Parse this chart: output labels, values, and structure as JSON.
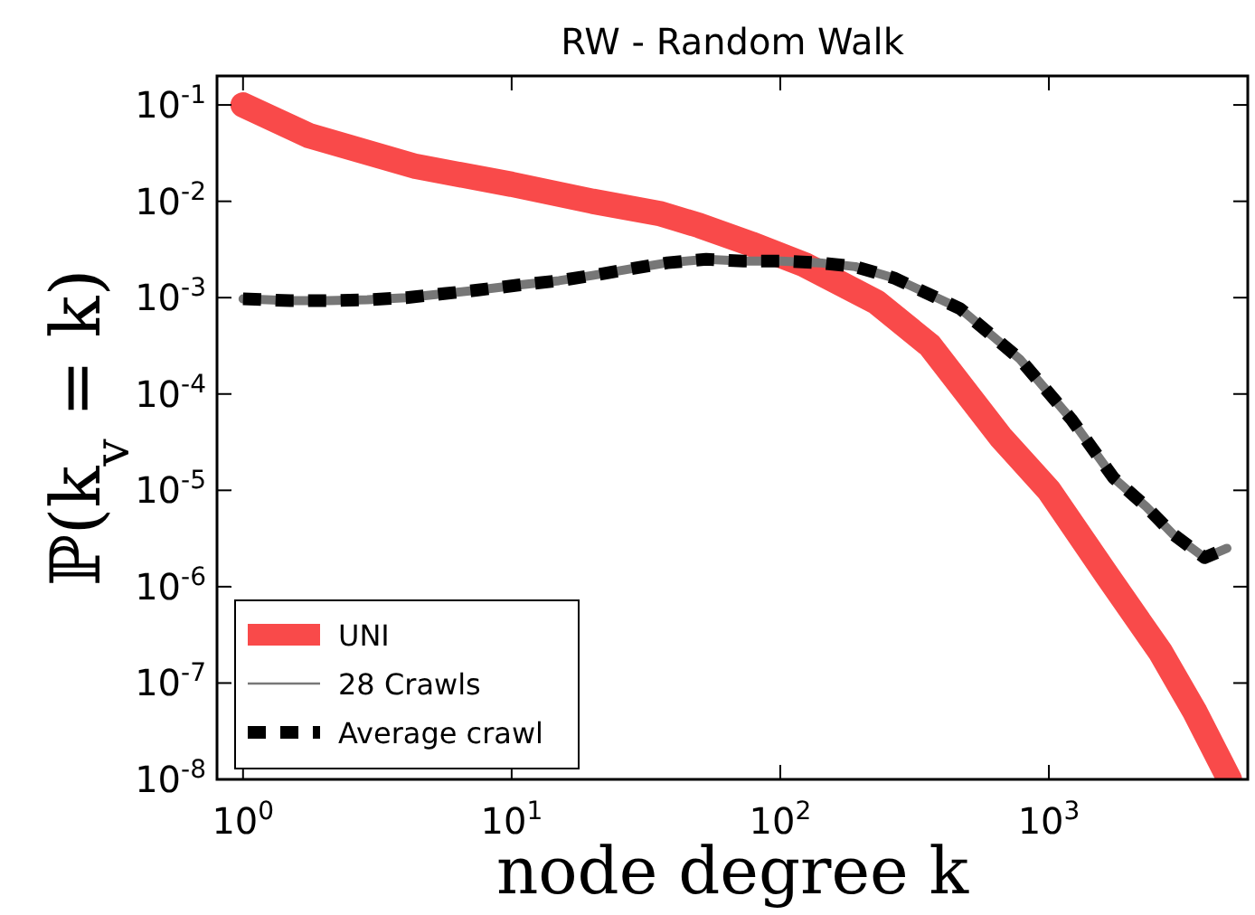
{
  "chart_data": {
    "type": "line",
    "title": "RW - Random Walk",
    "xlabel": "node degree k",
    "ylabel": "ℙ(k$_{v}$ = k)",
    "log": "xy",
    "grid": false,
    "legend": "bottom left",
    "xlim": [
      0.8,
      5500
    ],
    "ylim": [
      1e-08,
      0.2
    ],
    "xticks": [
      {
        "value": 1,
        "label": "10$^{0}$"
      },
      {
        "value": 10,
        "label": "10$^{1}$"
      },
      {
        "value": 100,
        "label": "10$^{2}$"
      },
      {
        "value": 1000,
        "label": "10$^{3}$"
      }
    ],
    "yticks": [
      {
        "value": 1e-08,
        "label": "10$^{-8}$"
      },
      {
        "value": 1e-07,
        "label": "10$^{-7}$"
      },
      {
        "value": 1e-06,
        "label": "10$^{-6}$"
      },
      {
        "value": 1e-05,
        "label": "10$^{-5}$"
      },
      {
        "value": 0.0001,
        "label": "10$^{-4}$"
      },
      {
        "value": 0.001,
        "label": "10$^{-3}$"
      },
      {
        "value": 0.01,
        "label": "10$^{-2}$"
      },
      {
        "value": 0.1,
        "label": "10$^{-1}$"
      }
    ],
    "series": [
      {
        "name": "UNI",
        "color": "#f94a4a",
        "line_style": "solid",
        "x": [
          1,
          1.76,
          4.4,
          10,
          20,
          36,
          50,
          78,
          123,
          228,
          360,
          660,
          1000,
          1650,
          2600,
          3500,
          4700
        ],
        "values": [
          0.1,
          0.048,
          0.023,
          0.015,
          0.01,
          0.0074,
          0.0056,
          0.0036,
          0.0022,
          0.0009,
          0.00032,
          3.6e-05,
          1e-05,
          1.3e-06,
          2.1e-07,
          5e-08,
          1e-08
        ]
      },
      {
        "name": "28 Crawls",
        "color": "#777777",
        "line_style": "solid",
        "x": [
          1,
          1.5,
          2.07,
          2.9,
          4.05,
          5.6,
          7.5,
          10.6,
          15,
          20,
          28,
          38,
          53,
          73,
          100,
          140,
          190,
          265,
          467,
          780,
          1210,
          1740,
          2300,
          2900,
          3800,
          4600
        ],
        "values": [
          0.00097,
          0.00093,
          0.00093,
          0.00095,
          0.001,
          0.0011,
          0.0012,
          0.00135,
          0.0015,
          0.0017,
          0.002,
          0.0023,
          0.0025,
          0.0024,
          0.0024,
          0.0023,
          0.0021,
          0.0016,
          0.00077,
          0.00023,
          5.5e-05,
          1.35e-05,
          6.8e-06,
          3.5e-06,
          2e-06,
          2.5e-06
        ]
      },
      {
        "name": "Average crawl",
        "color": "#000000",
        "line_style": "dashed",
        "x": [
          1,
          1.5,
          2.07,
          2.9,
          4.05,
          5.6,
          7.5,
          10.6,
          15,
          20,
          28,
          38,
          53,
          73,
          100,
          140,
          190,
          265,
          467,
          780,
          1210,
          1740,
          2300,
          2900,
          3800,
          4600
        ],
        "values": [
          0.00097,
          0.00093,
          0.00093,
          0.00095,
          0.001,
          0.0011,
          0.0012,
          0.00135,
          0.0015,
          0.0017,
          0.002,
          0.0023,
          0.0025,
          0.0024,
          0.0024,
          0.0023,
          0.0021,
          0.0016,
          0.00077,
          0.00023,
          5.5e-05,
          1.35e-05,
          6.8e-06,
          3.5e-06,
          2e-06,
          2.5e-06
        ]
      }
    ]
  }
}
